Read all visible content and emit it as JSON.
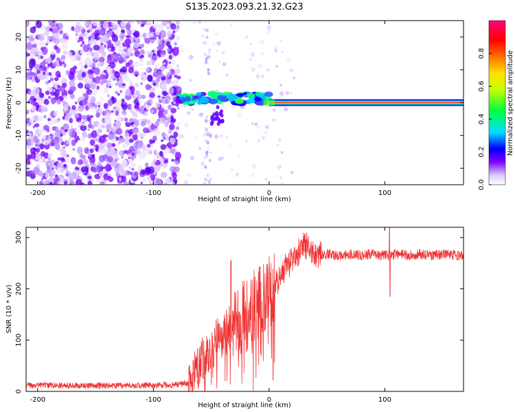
{
  "title": "S135.2023.093.21.32.G23",
  "chart_data": [
    {
      "type": "heatmap",
      "xlabel": "Height of straight line (km)",
      "ylabel": "Frequency (Hz)",
      "xlim": [
        -210,
        168
      ],
      "ylim": [
        -25,
        25
      ],
      "xticks": [
        -200,
        -100,
        0,
        100
      ],
      "yticks": [
        -20,
        -10,
        0,
        10,
        20
      ],
      "grid": false,
      "colorbar": {
        "label": "Normalized spectral amplitude",
        "range": [
          0,
          1
        ],
        "ticks": [
          0.0,
          0.2,
          0.4,
          0.6,
          0.8
        ],
        "stops": [
          "#ffffff",
          "#dcc6ff",
          "#7a00ff",
          "#0000ff",
          "#00e0ff",
          "#00ff40",
          "#c8ff00",
          "#ffe000",
          "#ff7000",
          "#ff0000",
          "#ff0080"
        ]
      },
      "regions": [
        {
          "x_range": [
            -210,
            -78
          ],
          "frequency_range": [
            -25,
            25
          ],
          "amplitude": "noise (0.05-0.25)"
        },
        {
          "x_range": [
            -78,
            0
          ],
          "frequency_center": 0.8,
          "amplitude": "0.2-0.5 scattered"
        },
        {
          "x_range": [
            0,
            168
          ],
          "frequency_center": 0,
          "amplitude": 1.0
        }
      ]
    },
    {
      "type": "line",
      "xlabel": "Height of straight line (km)",
      "ylabel": "SNR (10 * v/v)",
      "xlim": [
        -210,
        168
      ],
      "ylim": [
        0,
        320
      ],
      "xticks": [
        -200,
        -100,
        0,
        100
      ],
      "yticks": [
        0,
        100,
        200,
        300
      ],
      "grid": false,
      "color": "#ee3333",
      "series": [
        {
          "x": [
            -210,
            -150,
            -100,
            -80,
            -70,
            -65,
            -60,
            -55,
            -50,
            -45,
            -40,
            -35,
            -30,
            -25,
            -20,
            -15,
            -10,
            -5,
            0,
            5,
            10,
            15,
            20,
            25,
            30,
            35,
            40,
            45,
            50,
            60,
            70,
            80,
            90,
            100,
            105,
            110,
            120,
            130,
            140,
            150,
            168
          ],
          "y": [
            12,
            11,
            12,
            13,
            16,
            30,
            55,
            70,
            80,
            100,
            110,
            120,
            135,
            140,
            150,
            160,
            170,
            180,
            190,
            205,
            225,
            245,
            255,
            270,
            285,
            280,
            270,
            265,
            268,
            265,
            268,
            265,
            268,
            265,
            265,
            268,
            265,
            268,
            265,
            268,
            265
          ]
        }
      ]
    }
  ]
}
